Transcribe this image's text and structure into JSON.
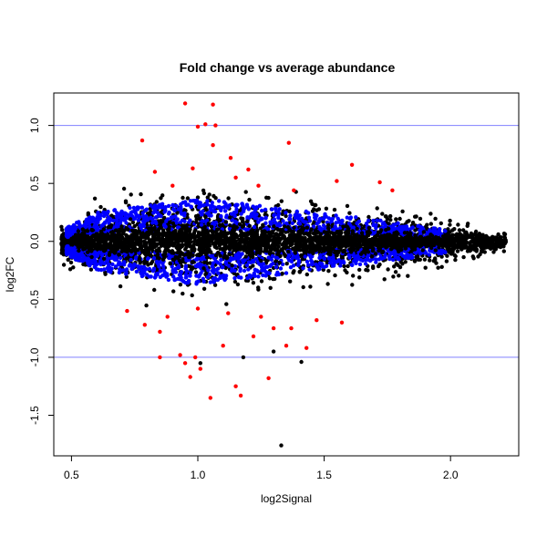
{
  "chart_data": {
    "type": "scatter",
    "title": "Fold change vs average abundance",
    "xlabel": "log2Signal",
    "ylabel": "log2FC",
    "xlim": [
      0.43,
      2.27
    ],
    "ylim": [
      -1.85,
      1.28
    ],
    "x_ticks": [
      "0.5",
      "1.0",
      "1.5",
      "2.0"
    ],
    "y_ticks": [
      "-1.5",
      "-1.0",
      "-0.5",
      "0.0",
      "0.5",
      "1.0"
    ],
    "hlines": [
      1.0,
      -1.0
    ],
    "colors": {
      "black": "#000000",
      "blue": "#0000ff",
      "red": "#ff0000",
      "hline": "#8080ff"
    },
    "series": [
      {
        "color": "black",
        "description": "core cloud"
      },
      {
        "color": "blue",
        "description": "band |log2FC| ~0.1-0.45"
      },
      {
        "color": "red",
        "points": [
          [
            0.95,
            1.19
          ],
          [
            1.06,
            1.18
          ],
          [
            1.03,
            1.01
          ],
          [
            1.07,
            1.0
          ],
          [
            1.0,
            0.99
          ],
          [
            0.78,
            0.87
          ],
          [
            1.36,
            0.85
          ],
          [
            1.06,
            0.83
          ],
          [
            1.13,
            0.72
          ],
          [
            1.61,
            0.66
          ],
          [
            0.98,
            0.63
          ],
          [
            1.15,
            0.55
          ],
          [
            1.72,
            0.51
          ],
          [
            1.24,
            0.48
          ],
          [
            0.9,
            0.48
          ],
          [
            1.55,
            0.52
          ],
          [
            1.77,
            0.44
          ],
          [
            1.38,
            0.44
          ],
          [
            0.83,
            0.6
          ],
          [
            1.2,
            0.62
          ],
          [
            0.72,
            -0.6
          ],
          [
            0.79,
            -0.72
          ],
          [
            0.85,
            -0.78
          ],
          [
            0.93,
            -0.98
          ],
          [
            0.99,
            -1.0
          ],
          [
            1.01,
            -1.1
          ],
          [
            1.05,
            -1.35
          ],
          [
            1.15,
            -1.25
          ],
          [
            1.17,
            -1.33
          ],
          [
            1.28,
            -1.18
          ],
          [
            1.22,
            -0.82
          ],
          [
            1.35,
            -0.9
          ],
          [
            1.43,
            -0.92
          ],
          [
            1.37,
            -0.75
          ],
          [
            1.47,
            -0.68
          ],
          [
            1.57,
            -0.7
          ],
          [
            0.95,
            -1.05
          ],
          [
            0.97,
            -1.17
          ],
          [
            0.85,
            -1.0
          ],
          [
            1.1,
            -0.9
          ],
          [
            1.25,
            -0.65
          ],
          [
            1.3,
            -0.75
          ],
          [
            0.88,
            -0.65
          ],
          [
            1.0,
            -0.58
          ],
          [
            1.12,
            -0.62
          ]
        ]
      },
      {
        "color": "black",
        "points": [
          [
            1.33,
            -1.76
          ],
          [
            1.41,
            -1.04
          ],
          [
            1.3,
            -0.95
          ],
          [
            1.01,
            -1.05
          ],
          [
            1.18,
            -1.0
          ]
        ]
      }
    ]
  }
}
